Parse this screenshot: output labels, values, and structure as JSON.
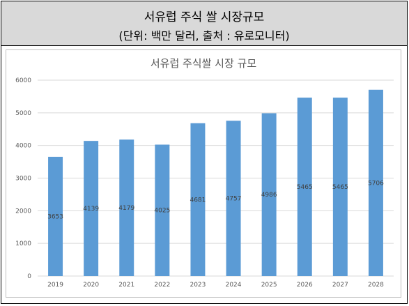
{
  "header": {
    "title": "서유럽 주식 쌀 시장규모",
    "subtitle": "(단위: 백만 달러, 출처 : 유로모니터)"
  },
  "chart_data": {
    "type": "bar",
    "title": "서유럽 주식쌀 시장 규모",
    "xlabel": "",
    "ylabel": "",
    "categories": [
      "2019",
      "2020",
      "2021",
      "2022",
      "2023",
      "2024",
      "2025",
      "2026",
      "2027",
      "2028"
    ],
    "values": [
      3653,
      4139,
      4179,
      4025,
      4681,
      4757,
      4986,
      5465,
      5465,
      5706
    ],
    "ylim": [
      0,
      6000
    ],
    "yticks": [
      0,
      1000,
      2000,
      3000,
      4000,
      5000,
      6000
    ],
    "grid": true,
    "legend": "none",
    "colors": {
      "bar": "#5b9bd5",
      "grid": "#d9d9d9",
      "text": "#595959"
    }
  }
}
